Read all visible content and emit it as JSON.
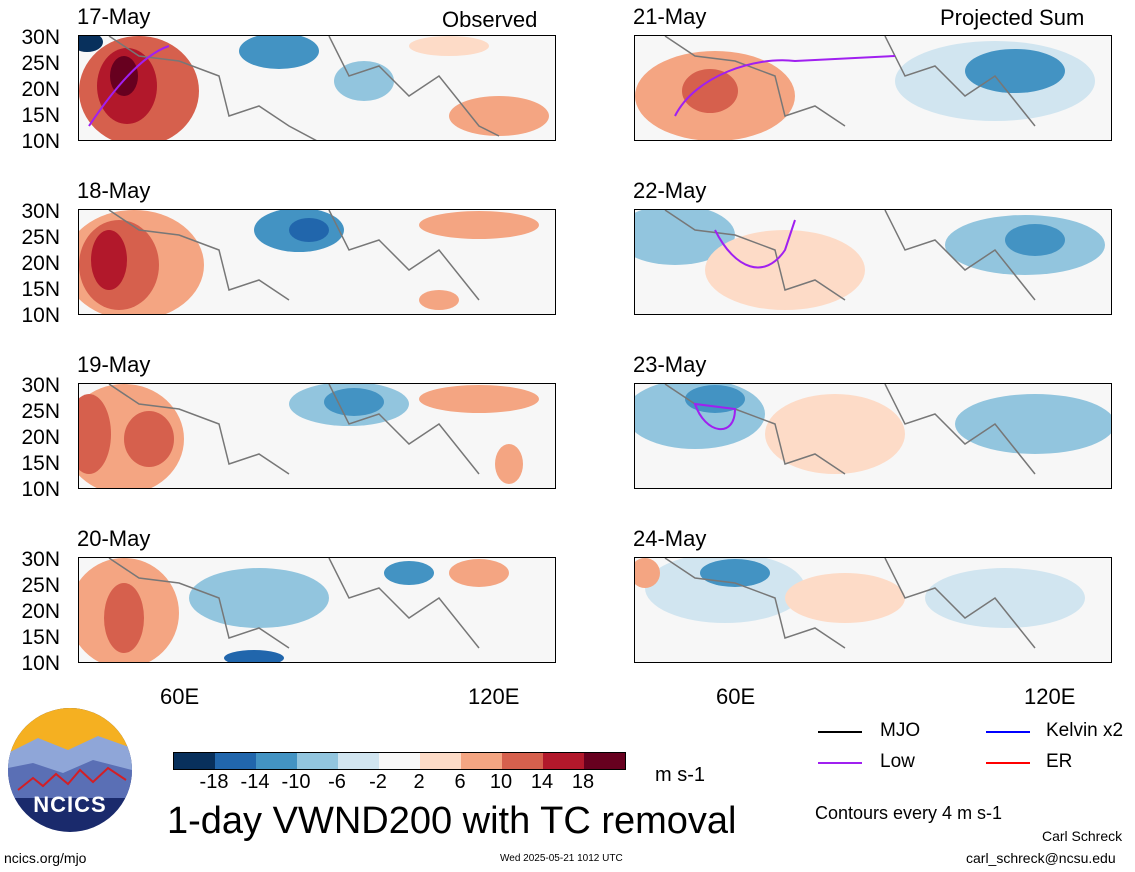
{
  "header": {
    "left_title": "Observed",
    "right_title": "Projected Sum"
  },
  "panels": {
    "p1": {
      "date": "17-May"
    },
    "p2": {
      "date": "18-May"
    },
    "p3": {
      "date": "19-May"
    },
    "p4": {
      "date": "20-May"
    },
    "p5": {
      "date": "21-May"
    },
    "p6": {
      "date": "22-May"
    },
    "p7": {
      "date": "23-May"
    },
    "p8": {
      "date": "24-May"
    }
  },
  "axes": {
    "lat_labels": [
      "30N",
      "25N",
      "20N",
      "15N",
      "10N"
    ],
    "lon_labels": [
      "60E",
      "120E"
    ]
  },
  "colorbar": {
    "labels": [
      "-18",
      "-14",
      "-10",
      "-6",
      "-2",
      "2",
      "6",
      "10",
      "14",
      "18"
    ],
    "unit": "m s-1",
    "colors": [
      "#08305c",
      "#2166ac",
      "#4393c3",
      "#92c5de",
      "#d1e5f0",
      "#f7f7f7",
      "#fddbc7",
      "#f4a582",
      "#d6604d",
      "#b2182b",
      "#67001f"
    ]
  },
  "legend": {
    "mjo": "MJO",
    "kelvin": "Kelvin x2",
    "low": "Low",
    "er": "ER",
    "colors": {
      "mjo": "#000000",
      "kelvin": "#0000ff",
      "low": "#a020f0",
      "er": "#ff0000"
    }
  },
  "contours_note": "Contours every 4 m s-1",
  "main_title": "1-day VWND200 with TC removal",
  "footer": {
    "site": "ncics.org/mjo",
    "timestamp": "Wed 2025-05-21 1012 UTC",
    "author": "Carl Schreck",
    "email": "carl_schreck@ncsu.edu",
    "logo_text": "NCICS"
  }
}
